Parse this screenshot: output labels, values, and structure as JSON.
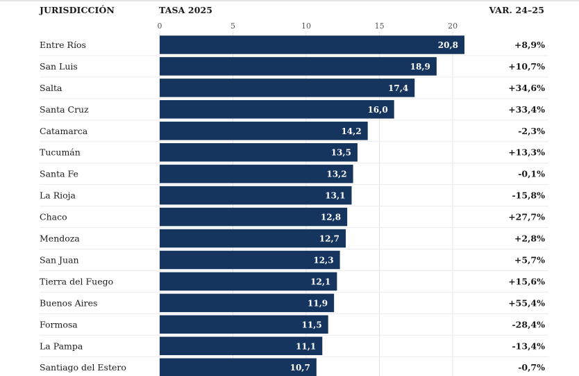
{
  "headers": {
    "jurisdiccion": "JURISDICCIÓN",
    "tasa": "TASA 2025",
    "variacion": "VAR. 24–25"
  },
  "colors": {
    "bar": "#15355f",
    "grid": "#e3e3e3",
    "row_divider": "#ececec"
  },
  "chart_data": {
    "type": "bar",
    "orientation": "horizontal",
    "categories": [
      "Entre Ríos",
      "San Luis",
      "Salta",
      "Santa Cruz",
      "Catamarca",
      "Tucumán",
      "Santa Fe",
      "La Rioja",
      "Chaco",
      "Mendoza",
      "San Juan",
      "Tierra del Fuego",
      "Buenos Aires",
      "Formosa",
      "La Pampa",
      "Santiago del Estero"
    ],
    "values": [
      20.8,
      18.9,
      17.4,
      16.0,
      14.2,
      13.5,
      13.2,
      13.1,
      12.8,
      12.7,
      12.3,
      12.1,
      11.9,
      11.5,
      11.1,
      10.7
    ],
    "value_labels": [
      "20,8",
      "18,9",
      "17,4",
      "16,0",
      "14,2",
      "13,5",
      "13,2",
      "13,1",
      "12,8",
      "12,7",
      "12,3",
      "12,1",
      "11,9",
      "11,5",
      "11,1",
      "10,7"
    ],
    "variation_labels": [
      "+8,9%",
      "+10,7%",
      "+34,6%",
      "+33,4%",
      "-2,3%",
      "+13,3%",
      "-0,1%",
      "-15,8%",
      "+27,7%",
      "+2,8%",
      "+5,7%",
      "+15,6%",
      "+55,4%",
      "-28,4%",
      "-13,4%",
      "-0,7%"
    ],
    "x_ticks": [
      0,
      5,
      10,
      15,
      20
    ],
    "x_tick_labels": [
      "0",
      "5",
      "10",
      "15",
      "20"
    ],
    "xlim": [
      0,
      20.8
    ],
    "grid": true,
    "legend": "none"
  }
}
